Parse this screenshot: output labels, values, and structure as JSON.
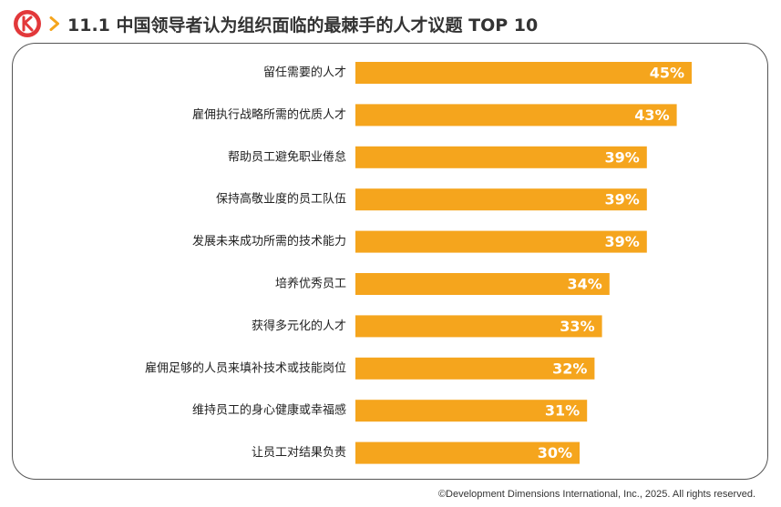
{
  "header": {
    "title": "11.1 中国领导者认为组织面临的最棘手的人才议题 TOP 10",
    "logo_icon": "ddi-logo-icon",
    "arrow_icon": "chevron-right-icon"
  },
  "colors": {
    "bar": "#F5A51D",
    "logo": "#E2383A",
    "chevron": "#F5A51D"
  },
  "chart_data": {
    "type": "bar",
    "orientation": "horizontal",
    "categories": [
      "留任需要的人才",
      "雇佣执行战略所需的优质人才",
      "帮助员工避免职业倦怠",
      "保持高敬业度的员工队伍",
      "发展未来成功所需的技术能力",
      "培养优秀员工",
      "获得多元化的人才",
      "雇佣足够的人员来填补技术或技能岗位",
      "维持员工的身心健康或幸福感",
      "让员工对结果负责"
    ],
    "values": [
      45,
      43,
      39,
      39,
      39,
      34,
      33,
      32,
      31,
      30
    ],
    "value_labels": [
      "45%",
      "43%",
      "39%",
      "39%",
      "39%",
      "34%",
      "33%",
      "32%",
      "31%",
      "30%"
    ],
    "unit": "%",
    "xlim": [
      0,
      50
    ],
    "grid": false,
    "legend": "none"
  },
  "footer": {
    "copyright": "©Development Dimensions International, Inc., 2025. All rights reserved."
  }
}
